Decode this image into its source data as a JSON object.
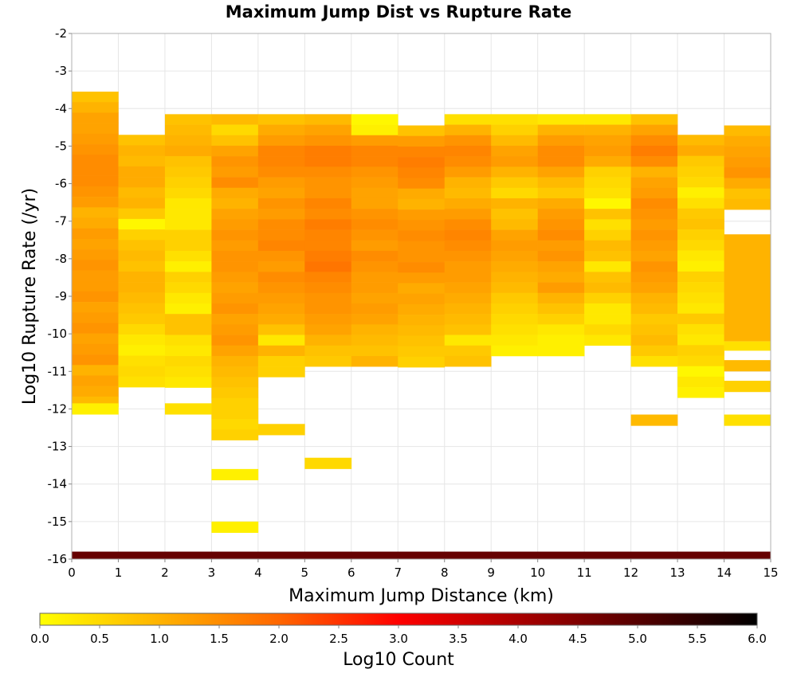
{
  "chart_data": {
    "type": "heatmap",
    "title": "Maximum Jump Dist vs Rupture Rate",
    "xlabel": "Maximum Jump Distance (km)",
    "ylabel": "Log10 Rupture Rate (/yr)",
    "xlim": [
      0,
      15
    ],
    "ylim": [
      -16,
      -2
    ],
    "x_ticks": [
      "0",
      "1",
      "2",
      "3",
      "4",
      "5",
      "6",
      "7",
      "8",
      "9",
      "10",
      "11",
      "12",
      "13",
      "14",
      "15"
    ],
    "y_ticks": [
      "-2",
      "-3",
      "-4",
      "-5",
      "-6",
      "-7",
      "-8",
      "-9",
      "-10",
      "-11",
      "-12",
      "-13",
      "-14",
      "-15",
      "-16"
    ],
    "grid": true,
    "colorbar": {
      "label": "Log10 Count",
      "range": [
        0,
        6
      ],
      "ticks": [
        "0.0",
        "0.5",
        "1.0",
        "1.5",
        "2.0",
        "2.5",
        "3.0",
        "3.5",
        "4.0",
        "4.5",
        "5.0",
        "5.5",
        "6.0"
      ],
      "colors": [
        "#ffff00",
        "#ff6600",
        "#ff0000",
        "#000000"
      ],
      "stops": [
        0,
        2,
        3,
        6
      ]
    },
    "bin_height": 0.28,
    "columns": [
      {
        "x0": 0,
        "y_top": -3.55,
        "log_counts": [
          0.8,
          1.0,
          1.2,
          1.2,
          1.3,
          1.4,
          1.5,
          1.5,
          1.5,
          1.4,
          1.3,
          1.0,
          1.1,
          1.3,
          1.2,
          1.3,
          1.4,
          1.3,
          1.3,
          1.4,
          1.2,
          1.3,
          1.4,
          1.2,
          1.3,
          1.4,
          1.0,
          1.2,
          1.1,
          0.9
        ],
        "extra": [
          {
            "y_top": -11.85,
            "y_bot": -12.15,
            "v": 0.2
          }
        ]
      },
      {
        "x0": 1,
        "y_top": -4.7,
        "log_counts": [
          0.8,
          1.0,
          0.9,
          1.1,
          1.1,
          0.9,
          1.0,
          0.7,
          0.1,
          0.6,
          0.8,
          0.9,
          0.8,
          1.0,
          1.0,
          0.9,
          0.8,
          0.7,
          0.5,
          0.3,
          0.2,
          0.4,
          0.5,
          0.4
        ]
      },
      {
        "x0": 2,
        "y_top": -4.15,
        "log_counts": [
          0.8,
          0.9,
          1.0,
          1.1,
          0.8,
          0.7,
          0.6,
          0.5,
          0.3,
          0.3,
          0.3,
          0.6,
          0.6,
          0.4,
          0.2,
          0.6,
          0.5,
          0.3,
          0.2,
          0.8,
          0.8,
          0.4,
          0.3,
          0.5,
          0.4,
          0.3
        ],
        "extra": [
          {
            "y_top": -11.85,
            "y_bot": -12.15,
            "v": 0.4
          }
        ]
      },
      {
        "x0": 3,
        "y_top": -4.15,
        "log_counts": [
          0.9,
          0.5,
          0.8,
          1.2,
          1.4,
          1.3,
          1.5,
          1.1,
          1.0,
          1.2,
          1.3,
          1.4,
          1.3,
          1.4,
          1.4,
          1.3,
          1.2,
          1.3,
          1.4,
          1.2,
          1.3,
          1.4,
          1.2,
          1.0,
          0.9,
          0.8,
          0.7,
          0.6,
          0.6,
          0.5,
          0.6
        ],
        "extra": [
          {
            "y_top": -13.6,
            "y_bot": -13.9,
            "v": 0.2
          },
          {
            "y_top": -15.0,
            "y_bot": -15.3,
            "v": 0.2
          }
        ]
      },
      {
        "x0": 4,
        "y_top": -4.15,
        "log_counts": [
          0.8,
          1.1,
          1.3,
          1.6,
          1.6,
          1.5,
          1.3,
          1.2,
          1.4,
          1.3,
          1.5,
          1.5,
          1.6,
          1.4,
          1.3,
          1.5,
          1.4,
          1.3,
          1.2,
          1.1,
          0.8,
          0.3,
          1.0,
          0.6,
          0.6
        ],
        "extra": [
          {
            "y_top": -12.4,
            "y_bot": -12.7,
            "v": 0.6
          }
        ]
      },
      {
        "x0": 5,
        "y_top": -4.15,
        "log_counts": [
          0.9,
          1.2,
          1.4,
          1.7,
          1.7,
          1.5,
          1.4,
          1.4,
          1.6,
          1.5,
          1.7,
          1.6,
          1.6,
          1.7,
          1.8,
          1.6,
          1.5,
          1.4,
          1.4,
          1.3,
          1.2,
          1.0,
          0.8,
          0.7
        ],
        "extra": [
          {
            "y_top": -13.3,
            "y_bot": -13.6,
            "v": 0.5
          }
        ]
      },
      {
        "x0": 6,
        "y_top": -4.15,
        "log_counts": [
          0.1,
          0.2,
          1.3,
          1.6,
          1.6,
          1.4,
          1.3,
          1.2,
          1.2,
          1.4,
          1.5,
          1.4,
          1.3,
          1.5,
          1.4,
          1.3,
          1.3,
          1.2,
          1.3,
          1.2,
          1.0,
          0.9,
          0.8,
          1.0
        ]
      },
      {
        "x0": 7,
        "y_top": -4.45,
        "log_counts": [
          0.8,
          1.3,
          1.6,
          1.7,
          1.6,
          1.5,
          1.1,
          1.0,
          1.3,
          1.4,
          1.5,
          1.4,
          1.4,
          1.5,
          1.3,
          1.1,
          1.2,
          1.1,
          1.0,
          0.9,
          0.8,
          0.7,
          0.6
        ]
      },
      {
        "x0": 8,
        "y_top": -4.15,
        "log_counts": [
          0.4,
          1.0,
          1.4,
          1.6,
          1.5,
          1.3,
          1.0,
          0.9,
          1.1,
          1.3,
          1.5,
          1.6,
          1.5,
          1.4,
          1.3,
          1.3,
          1.2,
          1.1,
          1.0,
          0.9,
          0.8,
          0.3,
          0.7,
          0.8
        ]
      },
      {
        "x0": 9,
        "y_top": -4.15,
        "log_counts": [
          0.4,
          0.6,
          0.9,
          1.2,
          1.3,
          1.0,
          0.7,
          0.5,
          1.0,
          0.8,
          0.9,
          1.2,
          1.3,
          1.2,
          1.1,
          1.0,
          0.9,
          0.7,
          0.6,
          0.5,
          0.4,
          0.3,
          0.2
        ]
      },
      {
        "x0": 10,
        "y_top": -4.15,
        "log_counts": [
          0.3,
          1.0,
          1.3,
          1.5,
          1.5,
          1.2,
          0.9,
          0.7,
          1.1,
          1.3,
          1.4,
          1.5,
          1.3,
          1.4,
          1.2,
          1.1,
          1.3,
          1.0,
          0.8,
          0.6,
          0.3,
          0.2,
          0.2
        ]
      },
      {
        "x0": 11,
        "y_top": -4.15,
        "log_counts": [
          0.3,
          1.0,
          1.2,
          1.3,
          1.1,
          0.6,
          0.5,
          0.4,
          0.1,
          0.8,
          0.4,
          0.6,
          0.9,
          0.8,
          0.3,
          0.8,
          0.9,
          0.6,
          0.3,
          0.3,
          0.5,
          0.3
        ]
      },
      {
        "x0": 12,
        "y_top": -4.15,
        "log_counts": [
          0.8,
          1.2,
          1.5,
          1.7,
          1.5,
          1.0,
          1.2,
          1.3,
          1.5,
          1.4,
          1.3,
          1.4,
          1.3,
          1.2,
          1.4,
          1.3,
          1.2,
          1.0,
          0.9,
          0.7,
          0.8,
          0.9,
          0.7,
          0.4
        ],
        "extra": [
          {
            "y_top": -12.15,
            "y_bot": -12.45,
            "v": 0.9
          }
        ]
      },
      {
        "x0": 13,
        "y_top": -4.7,
        "log_counts": [
          0.9,
          1.1,
          0.7,
          0.6,
          0.5,
          0.2,
          0.4,
          0.7,
          0.8,
          0.6,
          0.5,
          0.3,
          0.2,
          0.6,
          0.5,
          0.4,
          0.3,
          0.7,
          0.4,
          0.3,
          0.6,
          0.5,
          0.1,
          0.3,
          0.2
        ]
      },
      {
        "x0": 14,
        "y_top": -4.45,
        "log_counts": [
          0.9,
          1.1,
          1.2,
          1.3,
          1.4,
          1.1,
          0.8,
          0.9
        ],
        "extra": [
          {
            "y_top": -7.35,
            "y_bot": -10.2,
            "v": 1.0
          },
          {
            "y_top": -10.2,
            "y_bot": -10.45,
            "v": 0.4
          },
          {
            "y_top": -10.7,
            "y_bot": -11.0,
            "v": 0.9
          },
          {
            "y_top": -11.25,
            "y_bot": -11.55,
            "v": 0.6
          },
          {
            "y_top": -12.15,
            "y_bot": -12.45,
            "v": 0.4
          }
        ]
      }
    ],
    "baseline_band": {
      "y_top": -15.8,
      "y_bot": -16.0,
      "value": 4.8
    }
  }
}
